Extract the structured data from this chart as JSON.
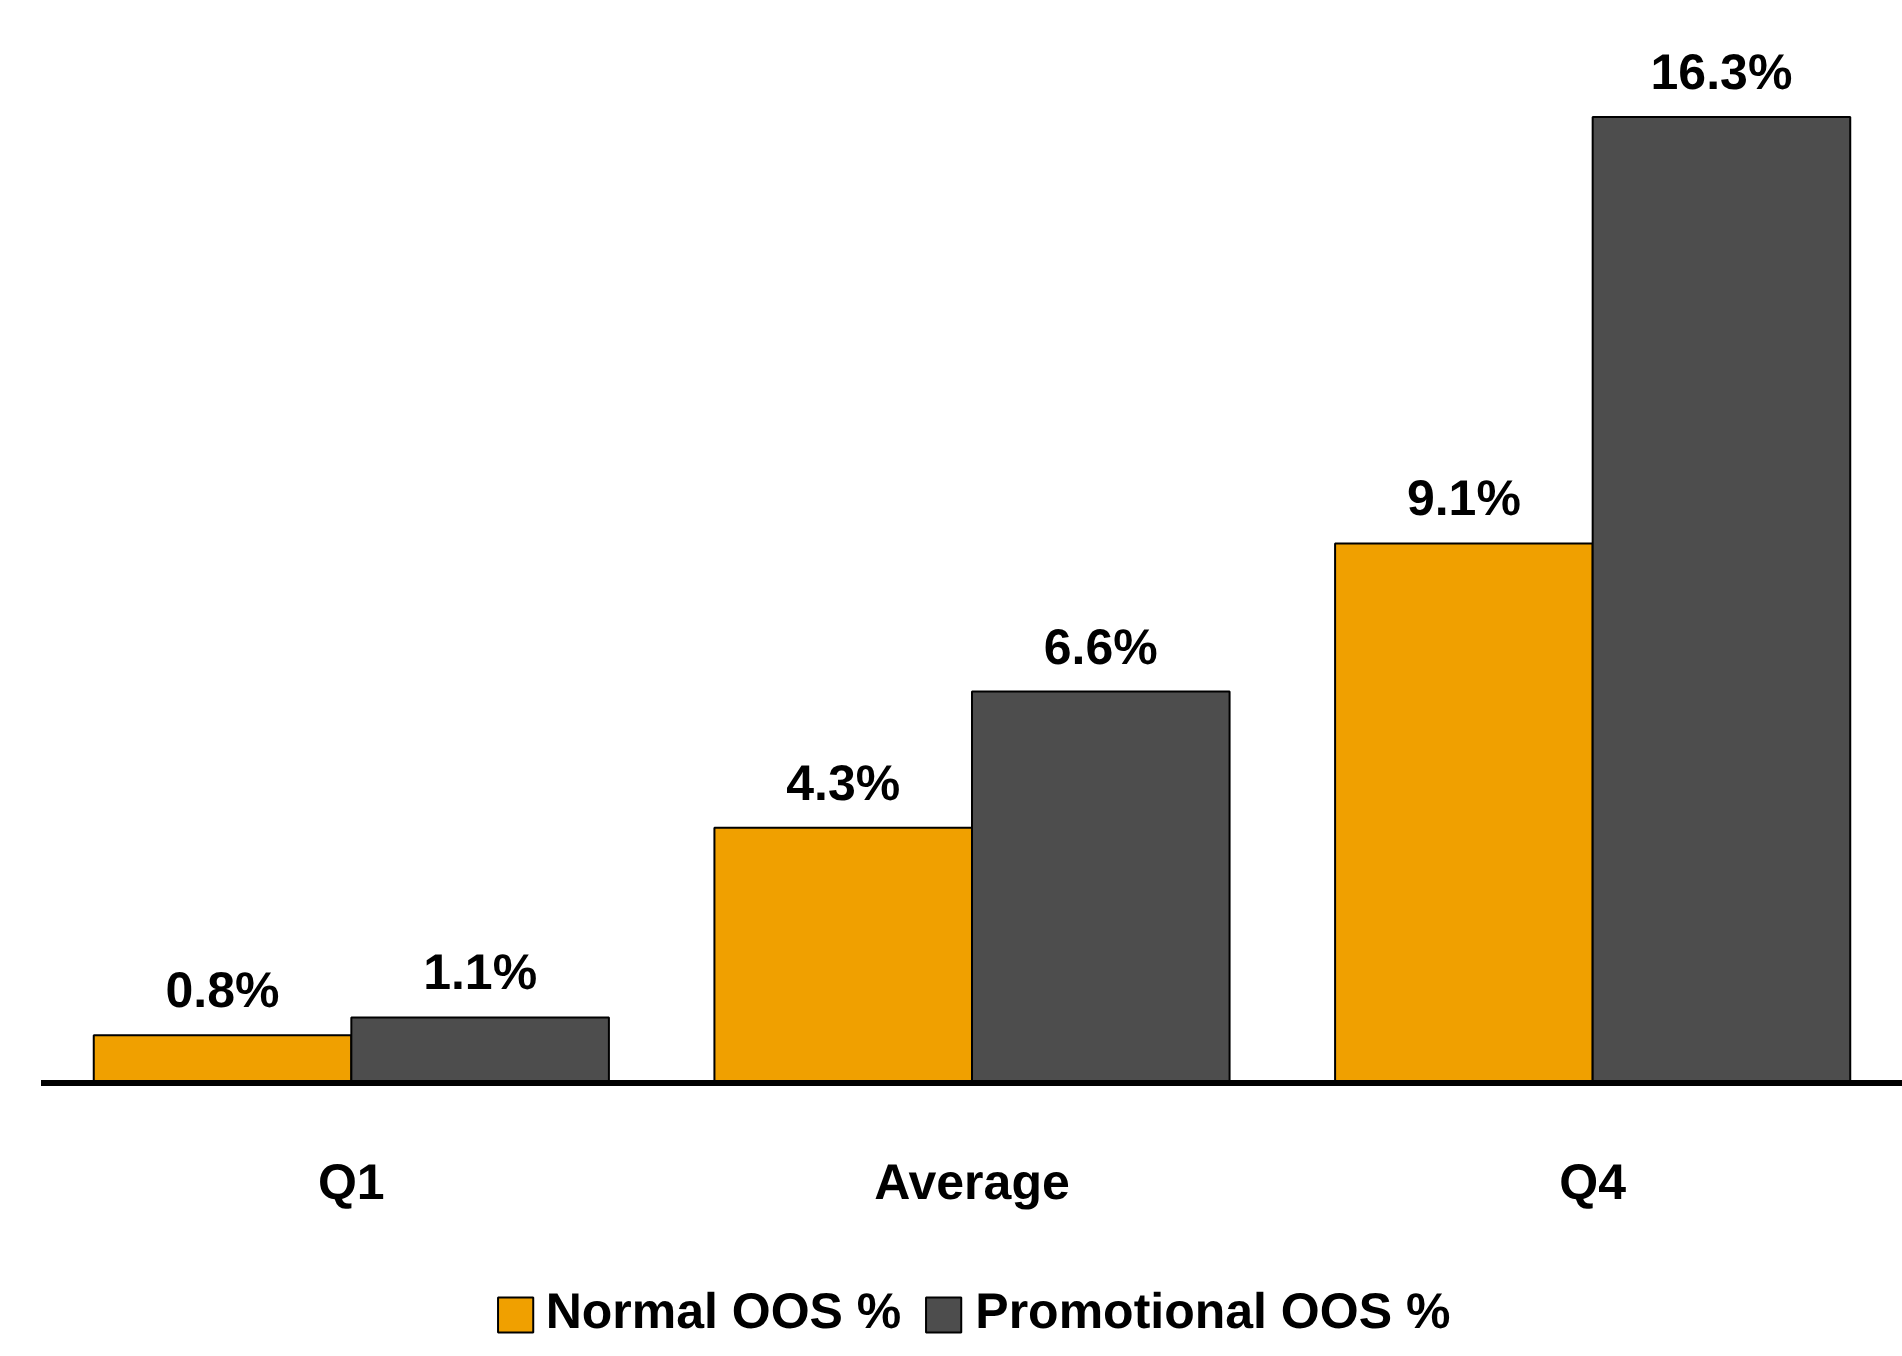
{
  "chart_data": {
    "type": "bar",
    "categories": [
      "Q1",
      "Average",
      "Q4"
    ],
    "series": [
      {
        "name": "Normal OOS %",
        "color": "#f0a000",
        "values": [
          0.8,
          4.3,
          9.1
        ],
        "value_labels": [
          "0.8%",
          "4.3%",
          "9.1%"
        ]
      },
      {
        "name": "Promotional OOS %",
        "color": "#4d4d4d",
        "values": [
          1.1,
          6.6,
          16.3
        ],
        "value_labels": [
          "1.1%",
          "6.6%",
          "16.3%"
        ]
      }
    ],
    "grid": false,
    "legend": "bottom"
  }
}
